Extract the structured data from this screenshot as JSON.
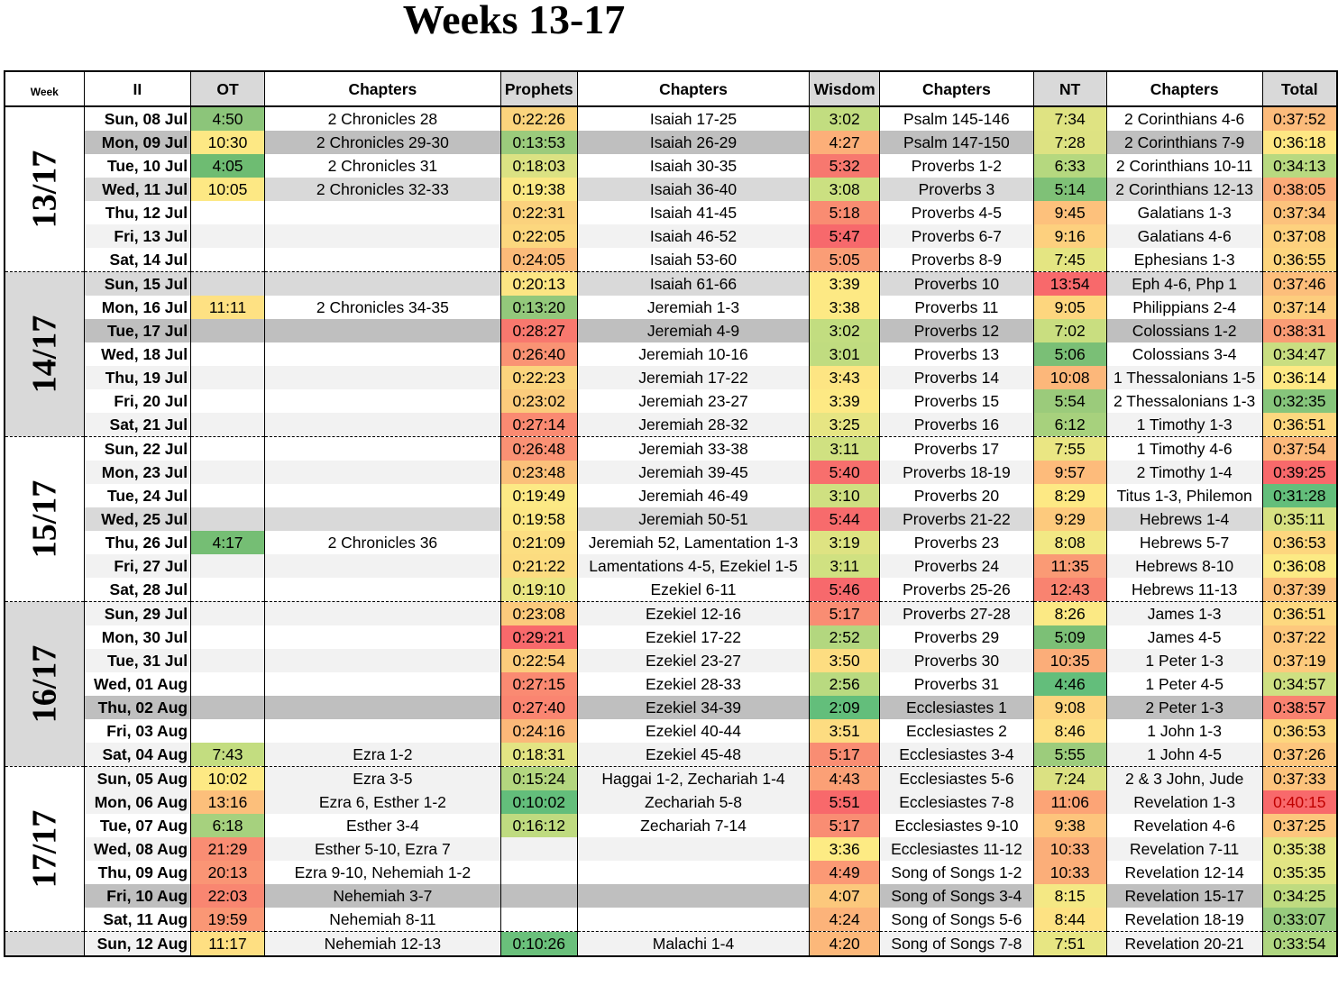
{
  "title": "Weeks 13-17",
  "headers": [
    "Week",
    "II",
    "OT",
    "Chapters",
    "Prophets",
    "Chapters",
    "Wisdom",
    "Chapters",
    "NT",
    "Chapters",
    "Total"
  ],
  "weeks": [
    {
      "label": "13/17",
      "shade": "white",
      "days": [
        {
          "date": "Sun, 08 Jul",
          "band": 0,
          "ot": "4:50",
          "ot_c": "#8cc57a",
          "ot_ch": "2 Chronicles 28",
          "pr": "0:22:26",
          "pr_c": "#fbd47d",
          "pr_ch": "Isaiah 17-25",
          "wi": "3:02",
          "wi_c": "#c2dd80",
          "wi_ch": "Psalm 145-146",
          "nt": "7:34",
          "nt_c": "#dfe382",
          "nt_ch": "2 Corinthians 4-6",
          "tot": "0:37:52",
          "tot_c": "#fcbb7b"
        },
        {
          "date": "Mon, 09 Jul",
          "band": 3,
          "ot": "10:30",
          "ot_c": "#fde884",
          "ot_ch": "2 Chronicles 29-30",
          "pr": "0:13:53",
          "pr_c": "#9bcb7c",
          "pr_ch": "Isaiah 26-29",
          "wi": "4:27",
          "wi_c": "#fcaf79",
          "wi_ch": "Psalm 147-150",
          "nt": "7:28",
          "nt_c": "#dde282",
          "nt_ch": "2 Corinthians 7-9",
          "tot": "0:36:18",
          "tot_c": "#fee783"
        },
        {
          "date": "Tue, 10 Jul",
          "band": 0,
          "ot": "4:05",
          "ot_c": "#6ebc72",
          "ot_ch": "2 Chronicles 31",
          "pr": "0:18:03",
          "pr_c": "#dbe283",
          "pr_ch": "Isaiah 30-35",
          "wi": "5:32",
          "wi_c": "#f7786f",
          "wi_ch": "Proverbs 1-2",
          "nt": "6:33",
          "nt_c": "#b5d87f",
          "nt_ch": "2 Corinthians 10-11",
          "tot": "0:34:13",
          "tot_c": "#b8d980"
        },
        {
          "date": "Wed, 11 Jul",
          "band": 2,
          "ot": "10:05",
          "ot_c": "#fde884",
          "ot_ch": "2 Chronicles 32-33",
          "pr": "0:19:38",
          "pr_c": "#fbe884",
          "pr_ch": "Isaiah 36-40",
          "wi": "3:08",
          "wi_c": "#cbe081",
          "wi_ch": "Proverbs 3",
          "nt": "5:14",
          "nt_c": "#7fc177",
          "nt_ch": "2 Corinthians 12-13",
          "tot": "0:38:05",
          "tot_c": "#fbab78"
        },
        {
          "date": "Thu, 12 Jul",
          "band": 0,
          "ot": "",
          "ot_c": "",
          "ot_ch": "",
          "pr": "0:22:31",
          "pr_c": "#fbd27d",
          "pr_ch": "Isaiah 41-45",
          "wi": "5:18",
          "wi_c": "#f98c72",
          "wi_ch": "Proverbs 4-5",
          "nt": "9:45",
          "nt_c": "#fdc17c",
          "nt_ch": "Galatians 1-3",
          "tot": "0:37:34",
          "tot_c": "#fcc27c"
        },
        {
          "date": "Fri, 13 Jul",
          "band": 1,
          "ot": "",
          "ot_c": "",
          "ot_ch": "",
          "pr": "0:22:05",
          "pr_c": "#fcd77e",
          "pr_ch": "Isaiah 46-52",
          "wi": "5:47",
          "wi_c": "#f7696c",
          "wi_ch": "Proverbs 6-7",
          "nt": "9:16",
          "nt_c": "#fdd07e",
          "nt_ch": "Galatians 4-6",
          "tot": "0:37:08",
          "tot_c": "#fdd17e"
        },
        {
          "date": "Sat, 14 Jul",
          "band": 0,
          "ot": "",
          "ot_c": "",
          "ot_ch": "",
          "pr": "0:24:05",
          "pr_c": "#fbba79",
          "pr_ch": "Isaiah 53-60",
          "wi": "5:05",
          "wi_c": "#fa9d76",
          "wi_ch": "Proverbs 8-9",
          "nt": "7:45",
          "nt_c": "#e4e582",
          "nt_ch": "Ephesians 1-3",
          "tot": "0:36:55",
          "tot_c": "#fdd57e"
        }
      ]
    },
    {
      "label": "14/17",
      "shade": "gray",
      "days": [
        {
          "date": "Sun, 15 Jul",
          "band": 2,
          "ot": "",
          "ot_c": "",
          "ot_ch": "",
          "pr": "0:20:13",
          "pr_c": "#fce583",
          "pr_ch": "Isaiah 61-66",
          "wi": "3:39",
          "wi_c": "#fde984",
          "wi_ch": "Proverbs 10",
          "nt": "13:54",
          "nt_c": "#f8696b",
          "nt_ch": "Eph 4-6, Php 1",
          "tot": "0:37:46",
          "tot_c": "#fcbe7b"
        },
        {
          "date": "Mon, 16 Jul",
          "band": 0,
          "ot": "11:11",
          "ot_c": "#fee183",
          "ot_ch": "2 Chronicles 34-35",
          "pr": "0:13:20",
          "pr_c": "#93c87b",
          "pr_ch": "Jeremiah 1-3",
          "wi": "3:38",
          "wi_c": "#fde984",
          "wi_ch": "Proverbs 11",
          "nt": "9:05",
          "nt_c": "#fdd67e",
          "nt_ch": "Philippians 2-4",
          "tot": "0:37:14",
          "tot_c": "#fdcd7d"
        },
        {
          "date": "Tue, 17 Jul",
          "band": 3,
          "ot": "",
          "ot_c": "",
          "ot_ch": "",
          "pr": "0:28:27",
          "pr_c": "#f8786e",
          "pr_ch": "Jeremiah 4-9",
          "wi": "3:02",
          "wi_c": "#c2dd80",
          "wi_ch": "Proverbs 12",
          "nt": "7:02",
          "nt_c": "#c9de80",
          "nt_ch": "Colossians 1-2",
          "tot": "0:38:31",
          "tot_c": "#fa9c75"
        },
        {
          "date": "Wed, 18 Jul",
          "band": 0,
          "ot": "",
          "ot_c": "",
          "ot_ch": "",
          "pr": "0:26:40",
          "pr_c": "#fa9374",
          "pr_ch": "Jeremiah 10-16",
          "wi": "3:01",
          "wi_c": "#c0dc80",
          "wi_ch": "Proverbs 13",
          "nt": "5:06",
          "nt_c": "#7abf76",
          "nt_ch": "Colossians 3-4",
          "tot": "0:34:47",
          "tot_c": "#c9de81"
        },
        {
          "date": "Thu, 19 Jul",
          "band": 1,
          "ot": "",
          "ot_c": "",
          "ot_ch": "",
          "pr": "0:22:23",
          "pr_c": "#fbd47d",
          "pr_ch": "Jeremiah 17-22",
          "wi": "3:43",
          "wi_c": "#fde583",
          "wi_ch": "Proverbs 14",
          "nt": "10:08",
          "nt_c": "#fcb77a",
          "nt_ch": "1 Thessalonians 1-5",
          "tot": "0:36:14",
          "tot_c": "#fee984"
        },
        {
          "date": "Fri, 20 Jul",
          "band": 0,
          "ot": "",
          "ot_c": "",
          "ot_ch": "",
          "pr": "0:23:02",
          "pr_c": "#fbcb7c",
          "pr_ch": "Jeremiah 23-27",
          "wi": "3:39",
          "wi_c": "#fde984",
          "wi_ch": "Proverbs 15",
          "nt": "5:54",
          "nt_c": "#9bcb7b",
          "nt_ch": "2 Thessalonians 1-3",
          "tot": "0:32:35",
          "tot_c": "#86c57b"
        },
        {
          "date": "Sat, 21 Jul",
          "band": 1,
          "ot": "",
          "ot_c": "",
          "ot_ch": "",
          "pr": "0:27:14",
          "pr_c": "#fa8a72",
          "pr_ch": "Jeremiah 28-32",
          "wi": "3:25",
          "wi_c": "#e6e583",
          "wi_ch": "Proverbs 16",
          "nt": "6:12",
          "nt_c": "#a7d17d",
          "nt_ch": "1 Timothy 1-3",
          "tot": "0:36:51",
          "tot_c": "#fdd87f"
        }
      ]
    },
    {
      "label": "15/17",
      "shade": "white",
      "days": [
        {
          "date": "Sun, 22 Jul",
          "band": 0,
          "ot": "",
          "ot_c": "",
          "ot_ch": "",
          "pr": "0:26:48",
          "pr_c": "#fa9174",
          "pr_ch": "Jeremiah 33-38",
          "wi": "3:11",
          "wi_c": "#d0e181",
          "wi_ch": "Proverbs 17",
          "nt": "7:55",
          "nt_c": "#eae683",
          "nt_ch": "1 Timothy 4-6",
          "tot": "0:37:54",
          "tot_c": "#fcb97a"
        },
        {
          "date": "Mon, 23 Jul",
          "band": 1,
          "ot": "",
          "ot_c": "",
          "ot_ch": "",
          "pr": "0:23:48",
          "pr_c": "#fbc07a",
          "pr_ch": "Jeremiah 39-45",
          "wi": "5:40",
          "wi_c": "#f76f6d",
          "wi_ch": "Proverbs 18-19",
          "nt": "9:57",
          "nt_c": "#fdbb7b",
          "nt_ch": "2 Timothy 1-4",
          "tot": "0:39:25",
          "tot_c": "#f8696b"
        },
        {
          "date": "Tue, 24 Jul",
          "band": 0,
          "ot": "",
          "ot_c": "",
          "ot_ch": "",
          "pr": "0:19:49",
          "pr_c": "#fce985",
          "pr_ch": "Jeremiah 46-49",
          "wi": "3:10",
          "wi_c": "#cfe081",
          "wi_ch": "Proverbs 20",
          "nt": "8:29",
          "nt_c": "#fde984",
          "nt_ch": "Titus 1-3, Philemon",
          "tot": "0:31:28",
          "tot_c": "#63be7b"
        },
        {
          "date": "Wed, 25 Jul",
          "band": 2,
          "ot": "",
          "ot_c": "",
          "ot_ch": "",
          "pr": "0:19:58",
          "pr_c": "#fce784",
          "pr_ch": "Jeremiah 50-51",
          "wi": "5:44",
          "wi_c": "#f76b6c",
          "wi_ch": "Proverbs 21-22",
          "nt": "9:29",
          "nt_c": "#fdca7d",
          "nt_ch": "Hebrews 1-4",
          "tot": "0:35:11",
          "tot_c": "#d7e182"
        },
        {
          "date": "Thu, 26 Jul",
          "band": 0,
          "ot": "4:17",
          "ot_c": "#75be74",
          "ot_ch": "2 Chronicles 36",
          "pr": "0:21:09",
          "pr_c": "#fcde81",
          "pr_ch": "Jeremiah 52, Lamentation 1-3",
          "wi": "3:19",
          "wi_c": "#dee382",
          "wi_ch": "Proverbs 23",
          "nt": "8:08",
          "nt_c": "#f2e884",
          "nt_ch": "Hebrews 5-7",
          "tot": "0:36:53",
          "tot_c": "#fdd67e"
        },
        {
          "date": "Fri, 27 Jul",
          "band": 1,
          "ot": "",
          "ot_c": "",
          "ot_ch": "",
          "pr": "0:21:22",
          "pr_c": "#fcdc80",
          "pr_ch": "Lamentations 4-5, Ezekiel 1-5",
          "wi": "3:11",
          "wi_c": "#d0e181",
          "wi_ch": "Proverbs 24",
          "nt": "11:35",
          "nt_c": "#fa9a75",
          "nt_ch": "Hebrews 8-10",
          "tot": "0:36:08",
          "tot_c": "#fcea84"
        },
        {
          "date": "Sat, 28 Jul",
          "band": 0,
          "ot": "",
          "ot_c": "",
          "ot_ch": "",
          "pr": "0:19:10",
          "pr_c": "#eae684",
          "pr_ch": "Ezekiel 6-11",
          "wi": "5:46",
          "wi_c": "#f7696c",
          "wi_ch": "Proverbs 25-26",
          "nt": "12:43",
          "nt_c": "#f98370",
          "nt_ch": "Hebrews 11-13",
          "tot": "0:37:39",
          "tot_c": "#fcc17c"
        }
      ]
    },
    {
      "label": "16/17",
      "shade": "gray",
      "days": [
        {
          "date": "Sun, 29 Jul",
          "band": 1,
          "ot": "",
          "ot_c": "",
          "ot_ch": "",
          "pr": "0:23:08",
          "pr_c": "#fbca7c",
          "pr_ch": "Ezekiel 12-16",
          "wi": "5:17",
          "wi_c": "#f98d73",
          "wi_ch": "Proverbs 27-28",
          "nt": "8:26",
          "nt_c": "#fbe984",
          "nt_ch": "James 1-3",
          "tot": "0:36:51",
          "tot_c": "#fdd87f"
        },
        {
          "date": "Mon, 30 Jul",
          "band": 0,
          "ot": "",
          "ot_c": "",
          "ot_ch": "",
          "pr": "0:29:21",
          "pr_c": "#f8696b",
          "pr_ch": "Ezekiel 17-22",
          "wi": "2:52",
          "wi_c": "#b3d77f",
          "wi_ch": "Proverbs 29",
          "nt": "5:09",
          "nt_c": "#7cc076",
          "nt_ch": "James 4-5",
          "tot": "0:37:22",
          "tot_c": "#fdc87d"
        },
        {
          "date": "Tue, 31 Jul",
          "band": 1,
          "ot": "",
          "ot_c": "",
          "ot_ch": "",
          "pr": "0:22:54",
          "pr_c": "#fbcc7c",
          "pr_ch": "Ezekiel 23-27",
          "wi": "3:50",
          "wi_c": "#fddd81",
          "wi_ch": "Proverbs 30",
          "nt": "10:35",
          "nt_c": "#fbad79",
          "nt_ch": "1 Peter 1-3",
          "tot": "0:37:19",
          "tot_c": "#fdca7d"
        },
        {
          "date": "Wed, 01 Aug",
          "band": 0,
          "ot": "",
          "ot_c": "",
          "ot_ch": "",
          "pr": "0:27:15",
          "pr_c": "#fa8a72",
          "pr_ch": "Ezekiel 28-33",
          "wi": "2:56",
          "wi_c": "#b9da80",
          "wi_ch": "Proverbs 31",
          "nt": "4:46",
          "nt_c": "#63be7b",
          "nt_ch": "1 Peter 4-5",
          "tot": "0:34:57",
          "tot_c": "#cee082"
        },
        {
          "date": "Thu, 02 Aug",
          "band": 3,
          "ot": "",
          "ot_c": "",
          "ot_ch": "",
          "pr": "0:27:40",
          "pr_c": "#fa8571",
          "pr_ch": "Ezekiel 34-39",
          "wi": "2:09",
          "wi_c": "#63be7b",
          "wi_ch": "Ecclesiastes 1",
          "nt": "9:08",
          "nt_c": "#fdd47e",
          "nt_ch": "2 Peter 1-3",
          "tot": "0:38:57",
          "tot_c": "#f98270"
        },
        {
          "date": "Fri, 03 Aug",
          "band": 0,
          "ot": "",
          "ot_c": "",
          "ot_ch": "",
          "pr": "0:24:16",
          "pr_c": "#fbb879",
          "pr_ch": "Ezekiel 40-44",
          "wi": "3:51",
          "wi_c": "#fddc81",
          "wi_ch": "Ecclesiastes 2",
          "nt": "8:46",
          "nt_c": "#fde083",
          "nt_ch": "1 John 1-3",
          "tot": "0:36:53",
          "tot_c": "#fdd67e"
        },
        {
          "date": "Sat, 04 Aug",
          "band": 1,
          "ot": "7:43",
          "ot_c": "#c3dd80",
          "ot_ch": "Ezra 1-2",
          "pr": "0:18:31",
          "pr_c": "#e3e483",
          "pr_ch": "Ezekiel 45-48",
          "wi": "5:17",
          "wi_c": "#f98d73",
          "wi_ch": "Ecclesiastes 3-4",
          "nt": "5:55",
          "nt_c": "#9ccc7c",
          "nt_ch": "1 John 4-5",
          "tot": "0:37:26",
          "tot_c": "#fdc67d"
        }
      ]
    },
    {
      "label": "17/17",
      "shade": "white",
      "days": [
        {
          "date": "Sun, 05 Aug",
          "band": 1,
          "ot": "10:02",
          "ot_c": "#fde984",
          "ot_ch": "Ezra 3-5",
          "pr": "0:15:24",
          "pr_c": "#b3d67f",
          "pr_ch": "Haggai 1-2, Zechariah 1-4",
          "wi": "4:43",
          "wi_c": "#fba076",
          "wi_ch": "Ecclesiastes 5-6",
          "nt": "7:24",
          "nt_c": "#dbe182",
          "nt_ch": "2 & 3 John, Jude",
          "tot": "0:37:33",
          "tot_c": "#fcc37c"
        },
        {
          "date": "Mon, 06 Aug",
          "band": 1,
          "ot": "13:16",
          "ot_c": "#fcbf7b",
          "ot_ch": "Ezra 6, Esther 1-2",
          "pr": "0:10:02",
          "pr_c": "#63be7b",
          "pr_ch": "Zechariah 5-8",
          "wi": "5:51",
          "wi_c": "#f8696b",
          "wi_ch": "Ecclesiastes 7-8",
          "nt": "11:06",
          "nt_c": "#fca476",
          "nt_ch": "Revelation 1-3",
          "tot": "0:40:15",
          "tot_c": "#f8696b",
          "tot_red": true
        },
        {
          "date": "Tue, 07 Aug",
          "band": 0,
          "ot": "6:18",
          "ot_c": "#a6d17e",
          "ot_ch": "Esther 3-4",
          "pr": "0:16:12",
          "pr_c": "#bfdb80",
          "pr_ch": "Zechariah 7-14",
          "wi": "5:17",
          "wi_c": "#f98d73",
          "wi_ch": "Ecclesiastes 9-10",
          "nt": "9:38",
          "nt_c": "#fdc47c",
          "nt_ch": "Revelation 4-6",
          "tot": "0:37:25",
          "tot_c": "#fdc67d"
        },
        {
          "date": "Wed, 08 Aug",
          "band": 1,
          "ot": "21:29",
          "ot_c": "#f98d73",
          "ot_ch": "Esther 5-10, Ezra 7",
          "pr": "",
          "pr_c": "",
          "pr_ch": "",
          "wi": "3:36",
          "wi_c": "#fdeb84",
          "wi_ch": "Ecclesiastes 11-12",
          "nt": "10:33",
          "nt_c": "#fbae79",
          "nt_ch": "Revelation 7-11",
          "tot": "0:35:38",
          "tot_c": "#e4e583"
        },
        {
          "date": "Thu, 09 Aug",
          "band": 0,
          "ot": "20:13",
          "ot_c": "#fa9575",
          "ot_ch": "Ezra 9-10, Nehemiah 1-2",
          "pr": "",
          "pr_c": "",
          "pr_ch": "",
          "wi": "4:49",
          "wi_c": "#fb9975",
          "wi_ch": "Song of Songs 1-2",
          "nt": "10:33",
          "nt_c": "#fbae79",
          "nt_ch": "Revelation 12-14",
          "tot": "0:35:35",
          "tot_c": "#e2e583"
        },
        {
          "date": "Fri, 10 Aug",
          "band": 3,
          "ot": "22:03",
          "ot_c": "#f98671",
          "ot_ch": "Nehemiah 3-7",
          "pr": "",
          "pr_c": "",
          "pr_ch": "",
          "wi": "4:07",
          "wi_c": "#fcc87c",
          "wi_ch": "Song of Songs 3-4",
          "nt": "8:15",
          "nt_c": "#f4e884",
          "nt_ch": "Revelation 15-17",
          "tot": "0:34:25",
          "tot_c": "#bfdb80"
        },
        {
          "date": "Sat, 11 Aug",
          "band": 0,
          "ot": "19:59",
          "ot_c": "#fa9775",
          "ot_ch": "Nehemiah 8-11",
          "pr": "",
          "pr_c": "",
          "pr_ch": "",
          "wi": "4:24",
          "wi_c": "#fcb37a",
          "wi_ch": "Song of Songs 5-6",
          "nt": "8:44",
          "nt_c": "#fde283",
          "nt_ch": "Revelation 18-19",
          "tot": "0:33:07",
          "tot_c": "#97ca7d"
        }
      ]
    },
    {
      "label": "",
      "shade": "gray",
      "days": [
        {
          "date": "Sun, 12 Aug",
          "band": 1,
          "ot": "11:17",
          "ot_c": "#fedf82",
          "ot_ch": "Nehemiah 12-13",
          "pr": "0:10:26",
          "pr_c": "#6ac07b",
          "pr_ch": "Malachi 1-4",
          "wi": "4:20",
          "wi_c": "#fcb87a",
          "wi_ch": "Song of Songs 7-8",
          "nt": "7:51",
          "nt_c": "#e7e683",
          "nt_ch": "Revelation 20-21",
          "tot": "0:33:54",
          "tot_c": "#afd680"
        }
      ]
    }
  ]
}
